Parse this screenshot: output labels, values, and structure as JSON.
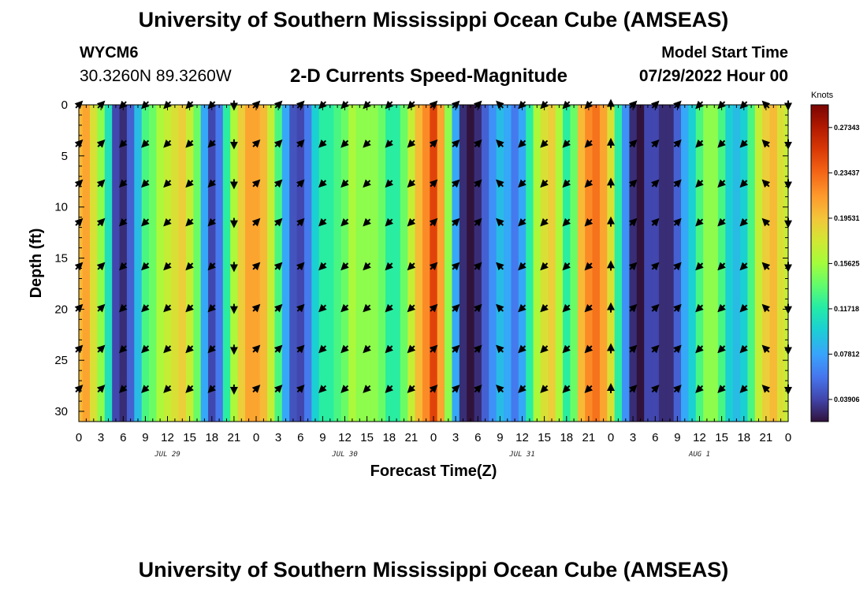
{
  "page_title": "University of Southern Mississippi Ocean Cube (AMSEAS)",
  "footer_title": "University of Southern Mississippi Ocean Cube (AMSEAS)",
  "station": {
    "id": "WYCM6",
    "coords": "30.3260N  89.3260W"
  },
  "model_start": {
    "label": "Model Start Time",
    "value": "07/29/2022 Hour 00"
  },
  "chart_data": {
    "type": "heatmap",
    "title": "2-D Currents Speed-Magnitude",
    "xlabel": "Forecast Time(Z)",
    "ylabel": "Depth (ft)",
    "x_range_hours": [
      0,
      96
    ],
    "y_range_ft": [
      0,
      31
    ],
    "y_inverted": true,
    "x_tick_hours": [
      0,
      3,
      6,
      9,
      12,
      15,
      18,
      21,
      24,
      27,
      30,
      33,
      36,
      39,
      42,
      45,
      48,
      51,
      54,
      57,
      60,
      63,
      66,
      69,
      72,
      75,
      78,
      81,
      84,
      87,
      90,
      93,
      96
    ],
    "x_tick_labels": [
      "0",
      "3",
      "6",
      "9",
      "12",
      "15",
      "18",
      "21",
      "0",
      "3",
      "6",
      "9",
      "12",
      "15",
      "18",
      "21",
      "0",
      "3",
      "6",
      "9",
      "12",
      "15",
      "18",
      "21",
      "0",
      "3",
      "6",
      "9",
      "12",
      "15",
      "18",
      "21",
      "0"
    ],
    "y_ticks": [
      0,
      5,
      10,
      15,
      20,
      25,
      30
    ],
    "y_tick_labels": [
      "0",
      "5",
      "10",
      "15",
      "20",
      "25",
      "30"
    ],
    "day_labels": [
      {
        "label": "JUL 29",
        "hour": 12
      },
      {
        "label": "JUL 30",
        "hour": 36
      },
      {
        "label": "JUL 31",
        "hour": 60
      },
      {
        "label": "AUG 1",
        "hour": 84
      }
    ],
    "colorbar": {
      "title": "Knots",
      "min": 0.02,
      "max": 0.293,
      "tick_values": [
        0.27343,
        0.23437,
        0.19531,
        0.15625,
        0.11718,
        0.07812,
        0.03906
      ],
      "tick_labels": [
        "0.27343",
        "0.23437",
        "0.19531",
        "0.15625",
        "0.11718",
        "0.07812",
        "0.03906"
      ]
    },
    "speed_profile": {
      "description": "surface current speed (knots) vs forecast hour",
      "hours": [
        0,
        1,
        2,
        3,
        4,
        5,
        6,
        7,
        8,
        9,
        10,
        11,
        12,
        13,
        14,
        15,
        16,
        17,
        18,
        19,
        20,
        21,
        22,
        23,
        24,
        25,
        26,
        27,
        28,
        29,
        30,
        31,
        32,
        33,
        34,
        35,
        36,
        37,
        38,
        39,
        40,
        41,
        42,
        43,
        44,
        45,
        46,
        47,
        48,
        49,
        50,
        51,
        52,
        53,
        54,
        55,
        56,
        57,
        58,
        59,
        60,
        61,
        62,
        63,
        64,
        65,
        66,
        67,
        68,
        69,
        70,
        71,
        72,
        73,
        74,
        75,
        76,
        77,
        78,
        79,
        80,
        81,
        82,
        83,
        84,
        85,
        86,
        87,
        88,
        89,
        90,
        91,
        92,
        93,
        94,
        95,
        96
      ],
      "speed": [
        0.2,
        0.21,
        0.18,
        0.15,
        0.11,
        0.04,
        0.03,
        0.05,
        0.09,
        0.13,
        0.14,
        0.16,
        0.17,
        0.18,
        0.19,
        0.17,
        0.14,
        0.08,
        0.04,
        0.06,
        0.12,
        0.16,
        0.19,
        0.21,
        0.21,
        0.2,
        0.17,
        0.13,
        0.08,
        0.045,
        0.04,
        0.06,
        0.1,
        0.12,
        0.12,
        0.13,
        0.14,
        0.16,
        0.15,
        0.15,
        0.15,
        0.14,
        0.12,
        0.12,
        0.14,
        0.17,
        0.2,
        0.22,
        0.25,
        0.21,
        0.15,
        0.08,
        0.03,
        0.02,
        0.03,
        0.05,
        0.07,
        0.09,
        0.08,
        0.06,
        0.08,
        0.12,
        0.16,
        0.18,
        0.19,
        0.16,
        0.12,
        0.14,
        0.2,
        0.22,
        0.23,
        0.21,
        0.18,
        0.12,
        0.07,
        0.03,
        0.02,
        0.04,
        0.04,
        0.03,
        0.03,
        0.05,
        0.08,
        0.1,
        0.13,
        0.15,
        0.15,
        0.13,
        0.1,
        0.09,
        0.1,
        0.13,
        0.17,
        0.19,
        0.2,
        0.18,
        0.17
      ]
    },
    "arrow_depths_ft": [
      0,
      3.8,
      7.7,
      11.5,
      15.8,
      19.9,
      23.9,
      27.8
    ],
    "arrow_hours": [
      0,
      3,
      6,
      9,
      12,
      15,
      18,
      21,
      24,
      27,
      30,
      33,
      36,
      39,
      42,
      45,
      48,
      51,
      54,
      57,
      60,
      63,
      66,
      69,
      72,
      75,
      78,
      81,
      84,
      87,
      90,
      93,
      96
    ],
    "arrow_directions": [
      "NE",
      "NE",
      "SW",
      "SW",
      "SW",
      "SW",
      "SW",
      "S",
      "NE",
      "NE",
      "NE",
      "SW",
      "SW",
      "SW",
      "SW",
      "SW",
      "NE",
      "NE",
      "NE",
      "NW",
      "SW",
      "SW",
      "SW",
      "SW",
      "N",
      "NE",
      "NE",
      "NE",
      "SW",
      "SW",
      "SW",
      "NW",
      "S"
    ]
  }
}
